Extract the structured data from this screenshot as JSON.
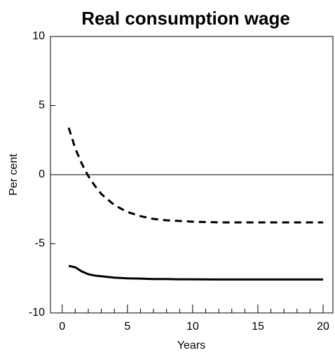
{
  "chart_data": {
    "type": "line",
    "title": "Real consumption wage",
    "xlabel": "Years",
    "ylabel": "Per cent",
    "x": [
      0.5,
      1,
      1.5,
      2,
      2.5,
      3,
      4,
      5,
      6,
      7,
      8,
      9,
      10,
      12,
      14,
      16,
      18,
      20
    ],
    "series": [
      {
        "color": "#000000",
        "dash": true,
        "values": [
          3.4,
          1.9,
          0.8,
          -0.1,
          -0.8,
          -1.4,
          -2.2,
          -2.7,
          -3.0,
          -3.2,
          -3.3,
          -3.35,
          -3.4,
          -3.45,
          -3.45,
          -3.45,
          -3.45,
          -3.45
        ]
      },
      {
        "color": "#000000",
        "dash": false,
        "values": [
          -6.6,
          -6.7,
          -7.0,
          -7.2,
          -7.3,
          -7.35,
          -7.45,
          -7.5,
          -7.52,
          -7.55,
          -7.55,
          -7.57,
          -7.57,
          -7.58,
          -7.58,
          -7.58,
          -7.58,
          -7.58
        ]
      }
    ],
    "xlim": [
      -0.9,
      20.75
    ],
    "ylim": [
      -10,
      10
    ],
    "xticks": [
      0,
      5,
      10,
      15,
      20
    ],
    "xminorticks": [
      1,
      2,
      3,
      4,
      6,
      7,
      8,
      9,
      11,
      12,
      13,
      14,
      16,
      17,
      18,
      19
    ],
    "yticks": [
      -10,
      -5,
      0,
      5,
      10
    ],
    "zero_line": true
  }
}
